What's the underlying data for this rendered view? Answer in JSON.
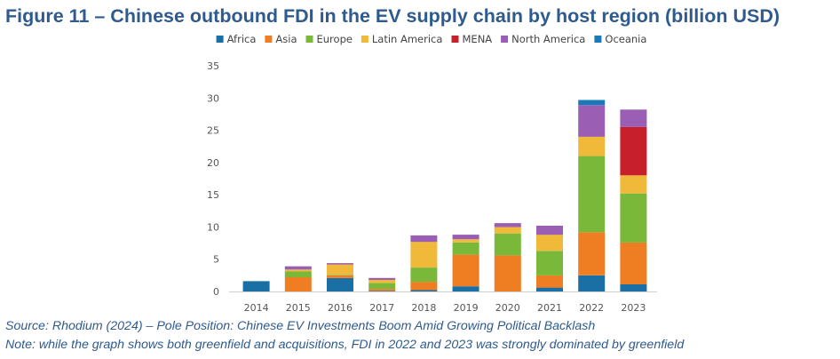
{
  "figure": {
    "title": "Figure 11 – Chinese outbound FDI in the EV supply chain by host region (billion USD)",
    "source": "Source: Rhodium (2024) – Pole Position: Chinese EV Investments Boom Amid Growing Political Backlash",
    "note": "Note: while the graph shows both greenfield and acquisitions, FDI in 2022 and 2023 was strongly dominated by greenfield"
  },
  "chart_data": {
    "type": "bar",
    "stacked": true,
    "title": "Chinese outbound FDI in the EV supply chain by host region (billion USD)",
    "xlabel": "",
    "ylabel": "",
    "ylim": [
      0,
      35
    ],
    "yticks": [
      0,
      5,
      10,
      15,
      20,
      25,
      30,
      35
    ],
    "grid": false,
    "legend_position": "top",
    "categories": [
      "2014",
      "2015",
      "2016",
      "2017",
      "2018",
      "2019",
      "2020",
      "2021",
      "2022",
      "2023"
    ],
    "series": [
      {
        "name": "Africa",
        "color": "#1a6fa5",
        "values": [
          1.6,
          0.0,
          2.1,
          0.1,
          0.2,
          0.8,
          0.0,
          0.6,
          2.5,
          1.1
        ]
      },
      {
        "name": "Asia",
        "color": "#ef7d22",
        "values": [
          0.0,
          2.2,
          0.4,
          0.3,
          1.3,
          4.9,
          5.6,
          1.9,
          6.7,
          6.5
        ]
      },
      {
        "name": "Europe",
        "color": "#7ab83a",
        "values": [
          0.0,
          0.9,
          0.1,
          0.9,
          2.2,
          1.9,
          3.4,
          3.8,
          11.8,
          7.6
        ]
      },
      {
        "name": "Latin America",
        "color": "#f0b93a",
        "values": [
          0.0,
          0.3,
          1.6,
          0.5,
          4.0,
          0.5,
          1.0,
          2.5,
          3.0,
          2.8
        ]
      },
      {
        "name": "MENA",
        "color": "#c8202a",
        "values": [
          0.0,
          0.0,
          0.0,
          0.0,
          0.0,
          0.0,
          0.0,
          0.0,
          0.0,
          7.5
        ]
      },
      {
        "name": "North America",
        "color": "#9a5fb5",
        "values": [
          0.0,
          0.5,
          0.2,
          0.3,
          1.0,
          0.7,
          0.6,
          1.4,
          4.9,
          2.7
        ]
      },
      {
        "name": "Oceania",
        "color": "#1b79b7",
        "values": [
          0.0,
          0.0,
          0.0,
          0.0,
          0.0,
          0.0,
          0.0,
          0.0,
          0.8,
          0.0
        ]
      }
    ]
  }
}
